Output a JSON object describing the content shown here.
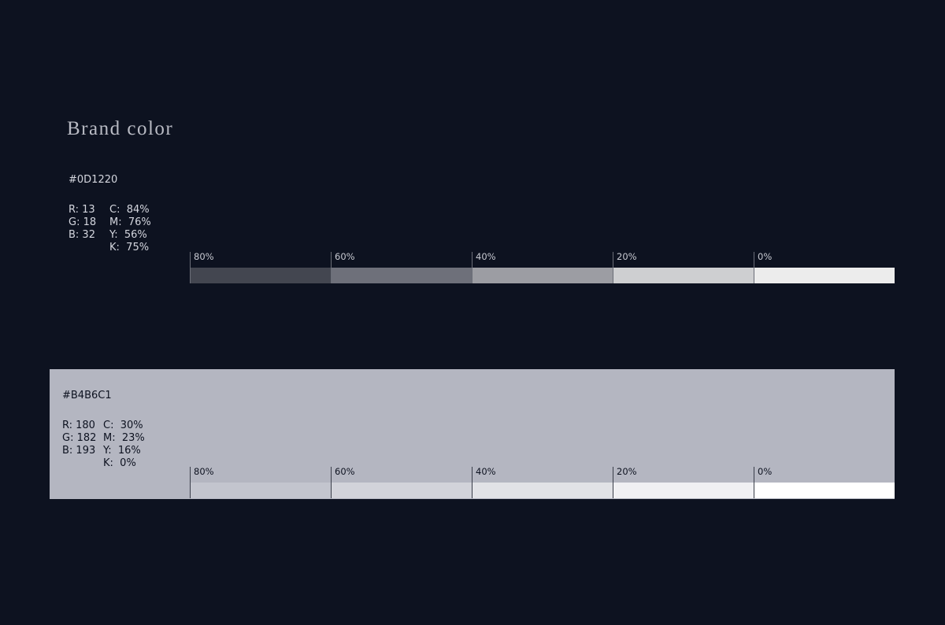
{
  "title": "Brand color",
  "colors": [
    {
      "hex": "#0D1220",
      "rgb": [
        "R: 13",
        "G: 18",
        "B: 32"
      ],
      "cmyk": [
        "C:  84%",
        "M:  76%",
        "Y:  56%",
        "K:  75%"
      ],
      "tints": [
        {
          "label": "80%",
          "color": "#434650"
        },
        {
          "label": "60%",
          "color": "#6e707a"
        },
        {
          "label": "40%",
          "color": "#9c9da3"
        },
        {
          "label": "20%",
          "color": "#cecfd1"
        },
        {
          "label": "0%",
          "color": "#ececec"
        }
      ]
    },
    {
      "hex": "#B4B6C1",
      "rgb": [
        "R: 180",
        "G: 182",
        "B: 193"
      ],
      "cmyk": [
        "C:  30%",
        "M:  23%",
        "Y:  16%",
        "K:  0%"
      ],
      "tints": [
        {
          "label": "80%",
          "color": "#c3c5ce"
        },
        {
          "label": "60%",
          "color": "#d2d3da"
        },
        {
          "label": "40%",
          "color": "#e1e2e6"
        },
        {
          "label": "20%",
          "color": "#f0f0f3"
        },
        {
          "label": "0%",
          "color": "#ffffff"
        }
      ]
    }
  ]
}
